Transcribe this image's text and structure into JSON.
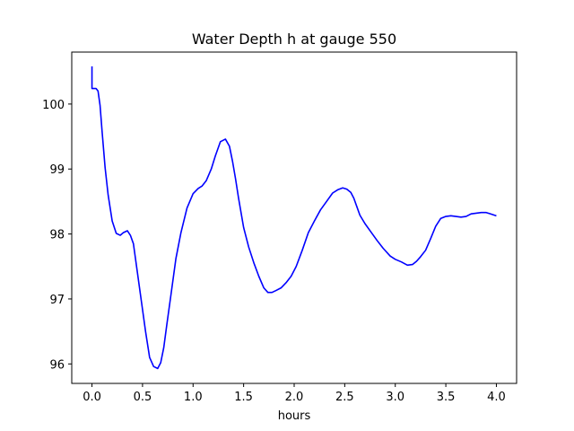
{
  "chart_data": {
    "type": "line",
    "title": "Water Depth h at gauge 550",
    "xlabel": "hours",
    "ylabel": "",
    "xlim": [
      -0.2,
      4.2
    ],
    "ylim": [
      95.7,
      100.8
    ],
    "xticks": [
      0.0,
      0.5,
      1.0,
      1.5,
      2.0,
      2.5,
      3.0,
      3.5,
      4.0
    ],
    "xtick_labels": [
      "0.0",
      "0.5",
      "1.0",
      "1.5",
      "2.0",
      "2.5",
      "3.0",
      "3.5",
      "4.0"
    ],
    "yticks": [
      96,
      97,
      98,
      99,
      100
    ],
    "ytick_labels": [
      "96",
      "97",
      "98",
      "99",
      "100"
    ],
    "grid": false,
    "series": [
      {
        "color": "#0000ff",
        "x": [
          0.0,
          0.0,
          0.0,
          0.01,
          0.04,
          0.06,
          0.08,
          0.1,
          0.13,
          0.16,
          0.2,
          0.24,
          0.28,
          0.31,
          0.35,
          0.38,
          0.41,
          0.45,
          0.49,
          0.53,
          0.57,
          0.61,
          0.65,
          0.68,
          0.71,
          0.74,
          0.78,
          0.83,
          0.88,
          0.94,
          1.0,
          1.05,
          1.09,
          1.13,
          1.18,
          1.22,
          1.27,
          1.32,
          1.36,
          1.39,
          1.42,
          1.45,
          1.5,
          1.55,
          1.6,
          1.65,
          1.7,
          1.74,
          1.78,
          1.82,
          1.87,
          1.92,
          1.97,
          2.02,
          2.08,
          2.14,
          2.2,
          2.26,
          2.32,
          2.38,
          2.43,
          2.48,
          2.52,
          2.56,
          2.59,
          2.62,
          2.65,
          2.7,
          2.76,
          2.82,
          2.88,
          2.95,
          3.0,
          3.06,
          3.12,
          3.17,
          3.21,
          3.25,
          3.3,
          3.35,
          3.4,
          3.45,
          3.5,
          3.55,
          3.6,
          3.65,
          3.7,
          3.75,
          3.8,
          3.85,
          3.9,
          3.94,
          3.98,
          4.0
        ],
        "y": [
          100.58,
          100.25,
          100.24,
          100.24,
          100.24,
          100.2,
          99.98,
          99.58,
          99.02,
          98.6,
          98.2,
          98.01,
          97.98,
          98.02,
          98.05,
          97.98,
          97.85,
          97.4,
          96.95,
          96.5,
          96.1,
          95.96,
          95.93,
          96.02,
          96.25,
          96.6,
          97.05,
          97.62,
          98.02,
          98.4,
          98.62,
          98.7,
          98.74,
          98.82,
          99.0,
          99.2,
          99.42,
          99.46,
          99.35,
          99.12,
          98.85,
          98.55,
          98.1,
          97.8,
          97.56,
          97.35,
          97.17,
          97.1,
          97.1,
          97.13,
          97.17,
          97.25,
          97.35,
          97.5,
          97.75,
          98.02,
          98.2,
          98.37,
          98.5,
          98.63,
          98.68,
          98.71,
          98.69,
          98.64,
          98.55,
          98.42,
          98.29,
          98.16,
          98.03,
          97.9,
          97.78,
          97.66,
          97.61,
          97.57,
          97.52,
          97.53,
          97.58,
          97.65,
          97.75,
          97.93,
          98.12,
          98.24,
          98.27,
          98.28,
          98.27,
          98.26,
          98.27,
          98.31,
          98.32,
          98.33,
          98.33,
          98.31,
          98.29,
          98.28
        ]
      }
    ]
  }
}
